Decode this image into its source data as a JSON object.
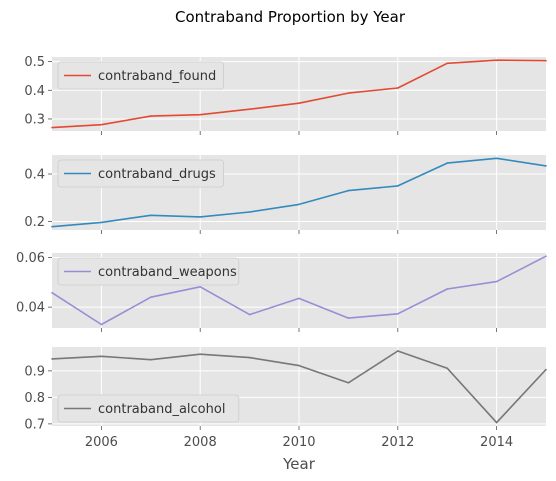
{
  "chart_data": {
    "type": "line",
    "title": "Contraband Proportion by Year",
    "xlabel": "Year",
    "x": [
      2005,
      2006,
      2007,
      2008,
      2009,
      2010,
      2011,
      2012,
      2013,
      2014,
      2015
    ],
    "xlim": [
      2005,
      2015
    ],
    "xticks": [
      "2006",
      "2008",
      "2010",
      "2012",
      "2014"
    ],
    "grid": true,
    "legend_placement": "upper-left",
    "panels": [
      {
        "name": "contraband_found",
        "color": "#E24A33",
        "values": [
          0.27,
          0.28,
          0.31,
          0.315,
          0.334,
          0.355,
          0.39,
          0.408,
          0.494,
          0.505,
          0.503
        ],
        "ylim": [
          0.258,
          0.516
        ],
        "yticks": [
          "0.3",
          "0.4",
          "0.5"
        ]
      },
      {
        "name": "contraband_drugs",
        "color": "#348ABD",
        "values": [
          0.178,
          0.196,
          0.226,
          0.219,
          0.24,
          0.272,
          0.33,
          0.35,
          0.446,
          0.466,
          0.434
        ],
        "ylim": [
          0.164,
          0.48
        ],
        "yticks": [
          "0.2",
          "0.4"
        ]
      },
      {
        "name": "contraband_weapons",
        "color": "#988ED5",
        "values": [
          0.0458,
          0.033,
          0.044,
          0.0482,
          0.037,
          0.0435,
          0.0356,
          0.0373,
          0.0473,
          0.0503,
          0.0605
        ],
        "ylim": [
          0.0316,
          0.0618
        ],
        "yticks": [
          "0.04",
          "0.06"
        ]
      },
      {
        "name": "contraband_alcohol",
        "color": "#777777",
        "values": [
          0.945,
          0.955,
          0.942,
          0.963,
          0.95,
          0.92,
          0.855,
          0.975,
          0.91,
          0.705,
          0.905
        ],
        "ylim": [
          0.692,
          0.99
        ],
        "yticks": [
          "0.7",
          "0.8",
          "0.9"
        ]
      }
    ]
  }
}
